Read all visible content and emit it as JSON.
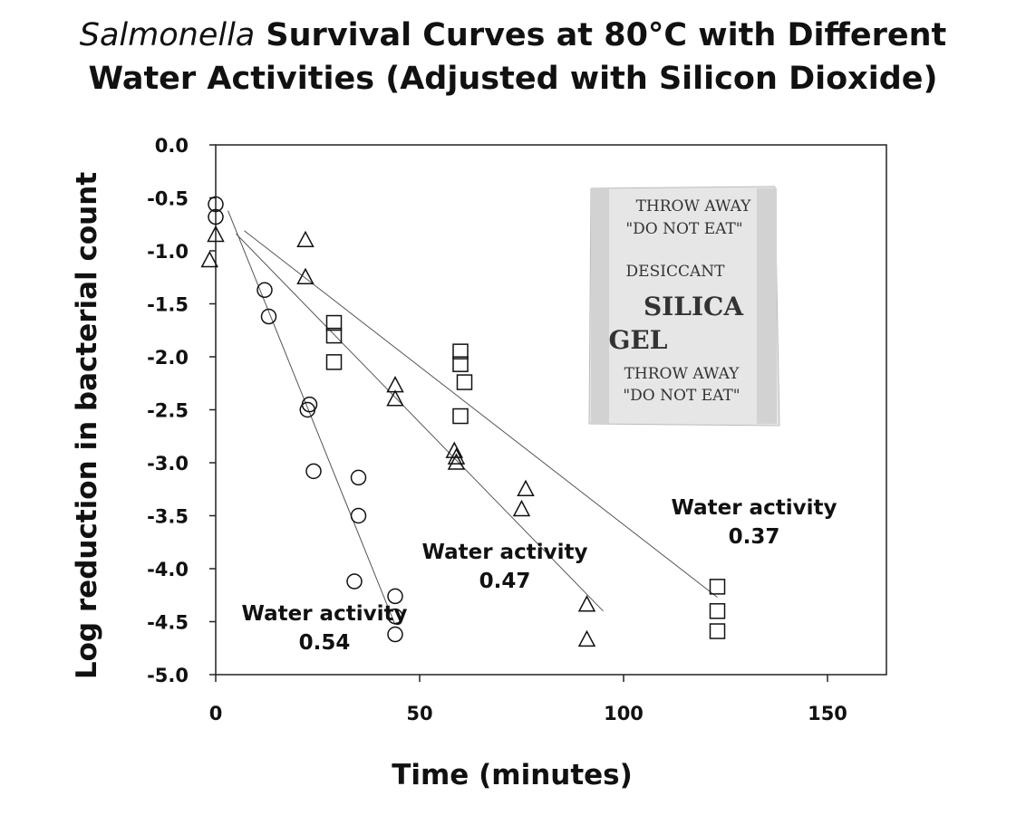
{
  "chart_data": {
    "type": "scatter",
    "title_italic": "Salmonella",
    "title_line1_rest": " Survival Curves at 80°C with Different",
    "title_line2": "Water Activities (Adjusted with Silicon Dioxide)",
    "xlabel": "Time (minutes)",
    "ylabel": "Log reduction in bacterial count",
    "xlim": [
      0,
      165
    ],
    "ylim": [
      -5.0,
      0.0
    ],
    "xticks": [
      0,
      50,
      100,
      150
    ],
    "yticks": [
      "0.0",
      "-0.5",
      "-1.0",
      "-1.5",
      "-2.0",
      "-2.5",
      "-3.0",
      "-3.5",
      "-4.0",
      "-4.5",
      "-5.0"
    ],
    "grid": false,
    "series": [
      {
        "marker": "circle",
        "label_line1": "Water activity",
        "label_line2": "0.54",
        "points": [
          [
            0,
            -0.56
          ],
          [
            0,
            -0.68
          ],
          [
            12,
            -1.37
          ],
          [
            13,
            -1.62
          ],
          [
            23,
            -2.45
          ],
          [
            22.5,
            -2.5
          ],
          [
            24,
            -3.08
          ],
          [
            35,
            -3.14
          ],
          [
            35,
            -3.5
          ],
          [
            34,
            -4.12
          ],
          [
            44,
            -4.26
          ],
          [
            44,
            -4.45
          ],
          [
            44,
            -4.62
          ]
        ],
        "fit": [
          [
            3,
            -0.62
          ],
          [
            44,
            -4.53
          ]
        ]
      },
      {
        "marker": "triangle",
        "label_line1": "Water activity",
        "label_line2": "0.47",
        "points": [
          [
            0,
            -0.85
          ],
          [
            -1.5,
            -1.09
          ],
          [
            22,
            -0.9
          ],
          [
            22,
            -1.25
          ],
          [
            44,
            -2.27
          ],
          [
            44,
            -2.4
          ],
          [
            58.5,
            -2.89
          ],
          [
            59,
            -2.95
          ],
          [
            59,
            -3.0
          ],
          [
            76,
            -3.25
          ],
          [
            75,
            -3.44
          ],
          [
            91,
            -4.34
          ],
          [
            91,
            -4.67
          ]
        ],
        "fit": [
          [
            5,
            -0.84
          ],
          [
            95,
            -4.4
          ]
        ]
      },
      {
        "marker": "square",
        "label_line1": "Water activity",
        "label_line2": "0.37",
        "points": [
          [
            29,
            -1.68
          ],
          [
            29,
            -1.8
          ],
          [
            29,
            -2.05
          ],
          [
            60,
            -1.95
          ],
          [
            60,
            -2.07
          ],
          [
            61,
            -2.24
          ],
          [
            60,
            -2.56
          ],
          [
            123,
            -4.17
          ],
          [
            123,
            -4.4
          ],
          [
            123,
            -4.59
          ]
        ],
        "fit": [
          [
            7,
            -0.81
          ],
          [
            123,
            -4.27
          ]
        ]
      }
    ],
    "inset_image": {
      "description_text": [
        "THROW AWAY",
        "\"DO NOT EAT\"",
        "DESICCANT",
        "SILICA",
        "GEL",
        "THROW AWAY",
        "\"DO NOT EAT\""
      ]
    }
  }
}
